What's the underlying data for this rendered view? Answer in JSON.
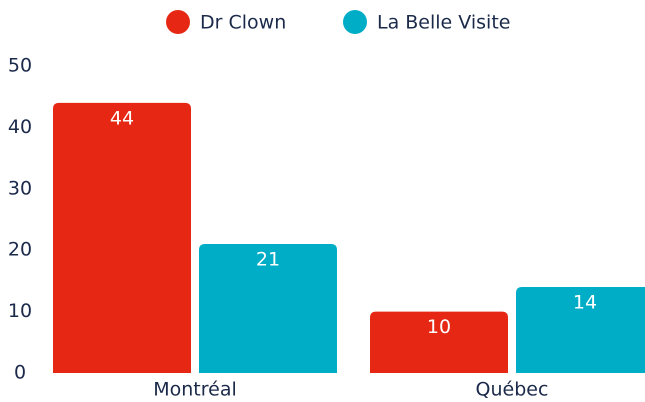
{
  "chart_data": {
    "type": "bar",
    "categories": [
      "Montréal",
      "Québec"
    ],
    "series": [
      {
        "name": "Dr Clown",
        "color": "#e52713",
        "values": [
          44,
          10
        ]
      },
      {
        "name": "La Belle Visite",
        "color": "#00adc6",
        "values": [
          21,
          14
        ]
      }
    ],
    "ylim": [
      0,
      50
    ],
    "yticks": [
      0,
      10,
      20,
      30,
      40,
      50
    ],
    "grid": false,
    "legend": "top"
  }
}
